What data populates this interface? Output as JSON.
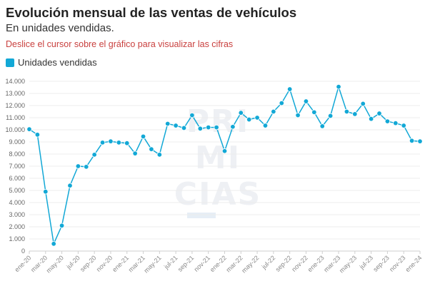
{
  "header": {
    "title": "Evolución mensual de las ventas de vehículos",
    "subtitle": "En unidades vendidas.",
    "hint": "Deslice el cursor sobre el gráfico para visualizar las cifras"
  },
  "legend": {
    "label": "Unidades vendidas",
    "color": "#12a8d6"
  },
  "watermark": {
    "lines": [
      "PRI",
      "MI",
      "CIAS"
    ]
  },
  "chart_data": {
    "type": "line",
    "title": "Evolución mensual de las ventas de vehículos",
    "subtitle": "En unidades vendidas.",
    "xlabel": "",
    "ylabel": "",
    "ylim": [
      0,
      14000
    ],
    "yticks": [
      0,
      1000,
      2000,
      3000,
      4000,
      5000,
      6000,
      7000,
      8000,
      9000,
      10000,
      11000,
      12000,
      13000,
      14000
    ],
    "ytick_labels": [
      "0",
      "1.000",
      "2.000",
      "3.000",
      "4.000",
      "5.000",
      "6.000",
      "7.000",
      "8.000",
      "9.000",
      "10.000",
      "11.000",
      "12.000",
      "13.000",
      "14.000"
    ],
    "grid": true,
    "legend_position": "top-left",
    "x": [
      "ene-20",
      "feb-20",
      "mar-20",
      "abr-20",
      "may-20",
      "jun-20",
      "jul-20",
      "ago-20",
      "sep-20",
      "oct-20",
      "nov-20",
      "dic-20",
      "ene-21",
      "feb-21",
      "mar-21",
      "abr-21",
      "may-21",
      "jun-21",
      "jul-21",
      "ago-21",
      "sep-21",
      "oct-21",
      "nov-21",
      "dic-21",
      "ene-22",
      "feb-22",
      "mar-22",
      "abr-22",
      "may-22",
      "jun-22",
      "jul-22",
      "ago-22",
      "sep-22",
      "oct-22",
      "nov-22",
      "dic-22",
      "ene-23",
      "feb-23",
      "mar-23",
      "abr-23",
      "may-23",
      "jun-23",
      "jul-23",
      "ago-23",
      "sep-23",
      "oct-23",
      "nov-23",
      "dic-23",
      "ene-24"
    ],
    "xtick_labels": [
      "ene-20",
      "mar-20",
      "may-20",
      "jul-20",
      "sep-20",
      "nov-20",
      "ene-21",
      "mar-21",
      "may-21",
      "jul-21",
      "sep-21",
      "nov-21",
      "ene-22",
      "mar-22",
      "may-22",
      "jul-22",
      "sep-22",
      "nov-22",
      "ene-23",
      "mar-23",
      "may-23",
      "jul-23",
      "sep-23",
      "nov-23",
      "ene-24"
    ],
    "series": [
      {
        "name": "Unidades vendidas",
        "color": "#12a8d6",
        "values": [
          10050,
          9600,
          4900,
          600,
          2100,
          5400,
          7000,
          6950,
          7950,
          8950,
          9050,
          8950,
          8900,
          8050,
          9450,
          8400,
          7950,
          10500,
          10350,
          10150,
          11200,
          10100,
          10200,
          10200,
          8250,
          10250,
          11400,
          10850,
          11000,
          10350,
          11500,
          12200,
          13350,
          11200,
          12350,
          11450,
          10300,
          11150,
          13550,
          11500,
          11300,
          12150,
          10900,
          11350,
          10700,
          10550,
          10350,
          9100,
          9050
        ]
      }
    ]
  }
}
